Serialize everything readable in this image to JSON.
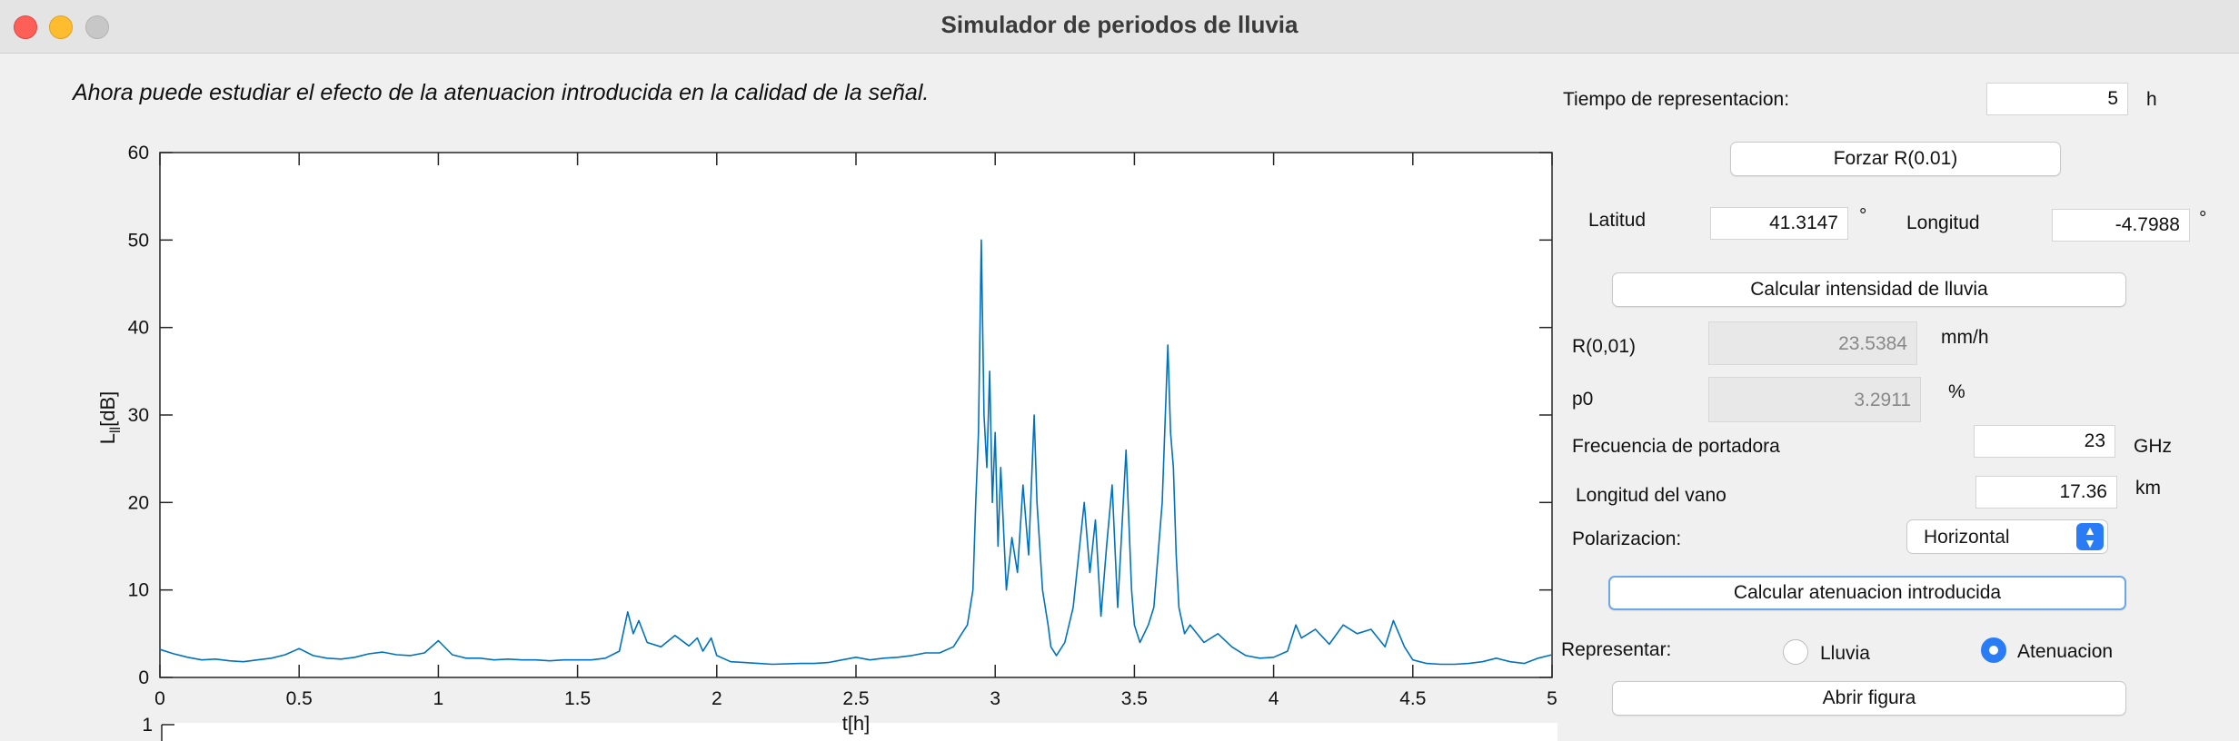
{
  "window": {
    "title": "Simulador de periodos de lluvia"
  },
  "instruction": "Ahora puede estudiar el efecto de la atenuacion introducida en la calidad de la señal.",
  "panel": {
    "tiempo_label": "Tiempo de representacion:",
    "tiempo_value": "5",
    "tiempo_unit": "h",
    "forzar_label": "Forzar R(0.01)",
    "latitud_label": "Latitud",
    "latitud_value": "41.3147",
    "latitud_unit": "°",
    "longitud_label": "Longitud",
    "longitud_value": "-4.7988",
    "longitud_unit": "°",
    "calc_lluvia_label": "Calcular intensidad de lluvia",
    "r001_label": "R(0,01)",
    "r001_value": "23.5384",
    "r001_unit": "mm/h",
    "p0_label": "p0",
    "p0_value": "3.2911",
    "p0_unit": "%",
    "frecuencia_label": "Frecuencia de portadora",
    "frecuencia_value": "23",
    "frecuencia_unit": "GHz",
    "vano_label": "Longitud del vano",
    "vano_value": "17.36",
    "vano_unit": "km",
    "polarizacion_label": "Polarizacion:",
    "polarizacion_value": "Horizontal",
    "calc_aten_label": "Calcular atenuacion introducida",
    "representar_label": "Representar:",
    "radio_lluvia": "Lluvia",
    "radio_atenuacion": "Atenuacion",
    "selected": "Atenuacion",
    "abrir_label": "Abrir figura"
  },
  "chart_data": {
    "type": "line",
    "title": "",
    "xlabel": "t[h]",
    "ylabel": "L_ll[dB]",
    "xlim": [
      0,
      5
    ],
    "ylim": [
      0,
      60
    ],
    "x_ticks": [
      "0",
      "0.5",
      "1",
      "1.5",
      "2",
      "2.5",
      "3",
      "3.5",
      "4",
      "4.5",
      "5"
    ],
    "y_ticks": [
      "0",
      "10",
      "20",
      "30",
      "40",
      "50",
      "60"
    ],
    "second_axes_tick": "1",
    "series": [
      {
        "color": "#0072bd",
        "points": [
          [
            0,
            3.2
          ],
          [
            0.05,
            2.7
          ],
          [
            0.1,
            2.3
          ],
          [
            0.15,
            2.0
          ],
          [
            0.2,
            2.1
          ],
          [
            0.25,
            1.9
          ],
          [
            0.3,
            1.8
          ],
          [
            0.35,
            2.0
          ],
          [
            0.4,
            2.2
          ],
          [
            0.45,
            2.6
          ],
          [
            0.5,
            3.3
          ],
          [
            0.55,
            2.5
          ],
          [
            0.6,
            2.2
          ],
          [
            0.65,
            2.1
          ],
          [
            0.7,
            2.3
          ],
          [
            0.75,
            2.7
          ],
          [
            0.8,
            2.9
          ],
          [
            0.85,
            2.6
          ],
          [
            0.9,
            2.5
          ],
          [
            0.95,
            2.8
          ],
          [
            1.0,
            4.2
          ],
          [
            1.05,
            2.6
          ],
          [
            1.1,
            2.2
          ],
          [
            1.15,
            2.2
          ],
          [
            1.2,
            2.0
          ],
          [
            1.25,
            2.1
          ],
          [
            1.3,
            2.0
          ],
          [
            1.35,
            2.0
          ],
          [
            1.4,
            1.9
          ],
          [
            1.45,
            2.0
          ],
          [
            1.5,
            2.0
          ],
          [
            1.55,
            2.0
          ],
          [
            1.6,
            2.2
          ],
          [
            1.65,
            3.0
          ],
          [
            1.68,
            7.5
          ],
          [
            1.7,
            5.0
          ],
          [
            1.72,
            6.5
          ],
          [
            1.75,
            4.0
          ],
          [
            1.8,
            3.5
          ],
          [
            1.85,
            4.8
          ],
          [
            1.9,
            3.6
          ],
          [
            1.93,
            4.5
          ],
          [
            1.95,
            3.0
          ],
          [
            1.98,
            4.5
          ],
          [
            2.0,
            2.5
          ],
          [
            2.05,
            1.8
          ],
          [
            2.1,
            1.7
          ],
          [
            2.15,
            1.6
          ],
          [
            2.2,
            1.5
          ],
          [
            2.3,
            1.6
          ],
          [
            2.35,
            1.6
          ],
          [
            2.4,
            1.7
          ],
          [
            2.45,
            2.0
          ],
          [
            2.5,
            2.3
          ],
          [
            2.55,
            2.0
          ],
          [
            2.6,
            2.2
          ],
          [
            2.65,
            2.3
          ],
          [
            2.7,
            2.5
          ],
          [
            2.75,
            2.8
          ],
          [
            2.8,
            2.8
          ],
          [
            2.85,
            3.5
          ],
          [
            2.88,
            5.0
          ],
          [
            2.9,
            6.0
          ],
          [
            2.92,
            10
          ],
          [
            2.93,
            20
          ],
          [
            2.94,
            28
          ],
          [
            2.95,
            50
          ],
          [
            2.96,
            30
          ],
          [
            2.97,
            24
          ],
          [
            2.98,
            35
          ],
          [
            2.99,
            20
          ],
          [
            3.0,
            28
          ],
          [
            3.01,
            15
          ],
          [
            3.02,
            24
          ],
          [
            3.04,
            10
          ],
          [
            3.06,
            16
          ],
          [
            3.08,
            12
          ],
          [
            3.1,
            22
          ],
          [
            3.12,
            14
          ],
          [
            3.14,
            30
          ],
          [
            3.15,
            20
          ],
          [
            3.17,
            10
          ],
          [
            3.19,
            6
          ],
          [
            3.2,
            3.5
          ],
          [
            3.22,
            2.5
          ],
          [
            3.25,
            4
          ],
          [
            3.28,
            8
          ],
          [
            3.3,
            14
          ],
          [
            3.32,
            20
          ],
          [
            3.34,
            12
          ],
          [
            3.36,
            18
          ],
          [
            3.38,
            7
          ],
          [
            3.4,
            15
          ],
          [
            3.42,
            22
          ],
          [
            3.44,
            8
          ],
          [
            3.45,
            14
          ],
          [
            3.47,
            26
          ],
          [
            3.49,
            10
          ],
          [
            3.5,
            6
          ],
          [
            3.52,
            4
          ],
          [
            3.55,
            6
          ],
          [
            3.57,
            8
          ],
          [
            3.6,
            20
          ],
          [
            3.62,
            38
          ],
          [
            3.63,
            28
          ],
          [
            3.64,
            24
          ],
          [
            3.65,
            14
          ],
          [
            3.66,
            8
          ],
          [
            3.68,
            5
          ],
          [
            3.7,
            6
          ],
          [
            3.75,
            4
          ],
          [
            3.8,
            5
          ],
          [
            3.85,
            3.5
          ],
          [
            3.9,
            2.5
          ],
          [
            3.95,
            2.2
          ],
          [
            4.0,
            2.3
          ],
          [
            4.05,
            3.0
          ],
          [
            4.08,
            6.0
          ],
          [
            4.1,
            4.5
          ],
          [
            4.15,
            5.5
          ],
          [
            4.2,
            3.8
          ],
          [
            4.25,
            6.0
          ],
          [
            4.3,
            5.0
          ],
          [
            4.35,
            5.5
          ],
          [
            4.4,
            3.5
          ],
          [
            4.43,
            6.5
          ],
          [
            4.45,
            5.0
          ],
          [
            4.47,
            3.5
          ],
          [
            4.5,
            2.0
          ],
          [
            4.55,
            1.6
          ],
          [
            4.6,
            1.5
          ],
          [
            4.65,
            1.5
          ],
          [
            4.7,
            1.6
          ],
          [
            4.75,
            1.8
          ],
          [
            4.8,
            2.2
          ],
          [
            4.85,
            1.8
          ],
          [
            4.9,
            1.6
          ],
          [
            4.95,
            2.2
          ],
          [
            5.0,
            2.6
          ]
        ]
      }
    ]
  }
}
